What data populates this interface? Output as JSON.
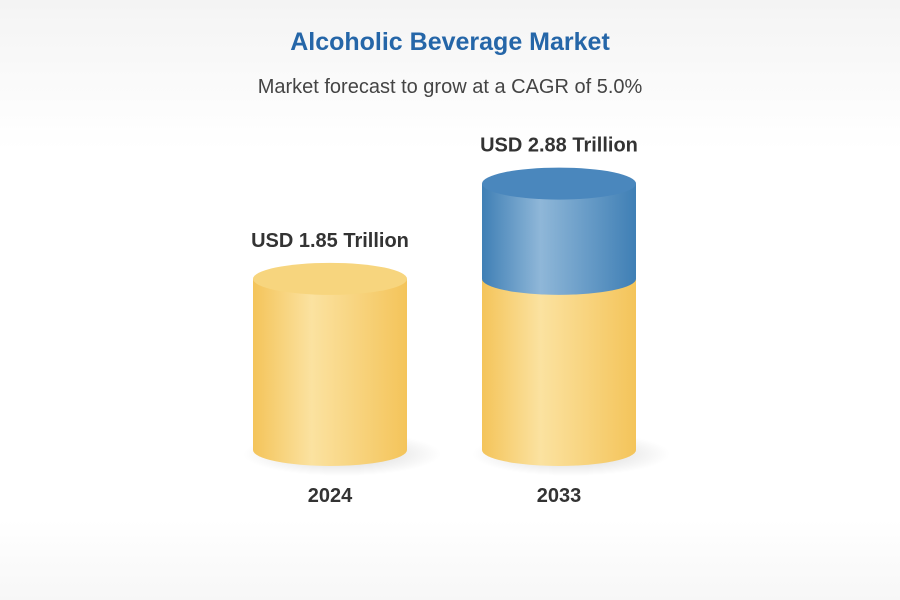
{
  "chart_data": {
    "type": "bar",
    "style": "3d-cylinder",
    "title": "Alcoholic Beverage Market",
    "subtitle": "Market forecast to grow at a CAGR of 5.0%",
    "categories": [
      "2024",
      "2033"
    ],
    "values": [
      1.85,
      2.88
    ],
    "unit": "USD Trillion",
    "value_labels": [
      "USD 1.85 Trillion",
      "USD 2.88 Trillion"
    ],
    "cagr_percent": 5.0,
    "grid": false,
    "legend": "none",
    "colors": {
      "base": "#f4c45a",
      "base_light": "#fbe2a0",
      "base_top": "#f7d57e",
      "growth": "#3f7fb5",
      "growth_light": "#8fb7d8",
      "growth_top": "#4a87bd",
      "title": "#2566a8",
      "text": "#333333"
    }
  }
}
